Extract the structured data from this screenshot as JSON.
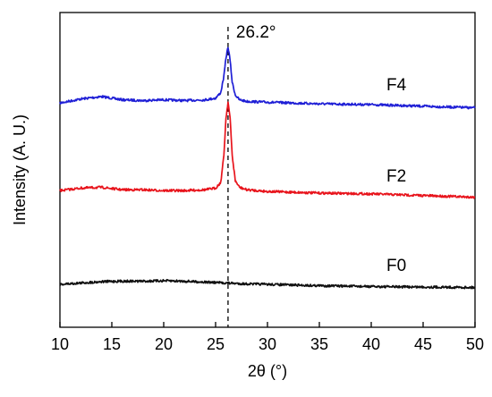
{
  "chart_data": {
    "type": "line",
    "xlabel": "2θ (°)",
    "ylabel": "Intensity (A. U.)",
    "xlim": [
      10,
      50
    ],
    "x_ticks": [
      10,
      15,
      20,
      25,
      30,
      35,
      40,
      45,
      50
    ],
    "y_ticks_shown": false,
    "grid": false,
    "legend": "none",
    "annotation": {
      "text": "26.2°",
      "x": 26.2,
      "style": "dashed vertical line"
    },
    "series": [
      {
        "name": "F4",
        "color": "#1f1fd6",
        "points": [
          [
            10,
            0.02
          ],
          [
            12,
            0.07
          ],
          [
            14,
            0.1
          ],
          [
            16,
            0.06
          ],
          [
            18,
            0.05
          ],
          [
            20,
            0.06
          ],
          [
            22,
            0.05
          ],
          [
            24,
            0.06
          ],
          [
            25,
            0.08
          ],
          [
            25.5,
            0.15
          ],
          [
            25.8,
            0.35
          ],
          [
            26,
            0.58
          ],
          [
            26.2,
            0.72
          ],
          [
            26.4,
            0.55
          ],
          [
            26.6,
            0.28
          ],
          [
            26.9,
            0.12
          ],
          [
            27.3,
            0.06
          ],
          [
            28,
            0.04
          ],
          [
            30,
            0.03
          ],
          [
            35,
            0.01
          ],
          [
            40,
            0.0
          ],
          [
            45,
            -0.02
          ],
          [
            50,
            -0.04
          ]
        ]
      },
      {
        "name": "F2",
        "color": "#e8141c",
        "points": [
          [
            10,
            0.02
          ],
          [
            12,
            0.05
          ],
          [
            14,
            0.06
          ],
          [
            16,
            0.03
          ],
          [
            18,
            0.03
          ],
          [
            20,
            0.02
          ],
          [
            22,
            0.02
          ],
          [
            24,
            0.03
          ],
          [
            25,
            0.05
          ],
          [
            25.5,
            0.12
          ],
          [
            25.8,
            0.45
          ],
          [
            26,
            0.9
          ],
          [
            26.2,
            1.1
          ],
          [
            26.4,
            0.9
          ],
          [
            26.6,
            0.45
          ],
          [
            26.9,
            0.14
          ],
          [
            27.3,
            0.06
          ],
          [
            28,
            0.03
          ],
          [
            30,
            0.01
          ],
          [
            35,
            -0.01
          ],
          [
            40,
            -0.02
          ],
          [
            45,
            -0.04
          ],
          [
            50,
            -0.06
          ]
        ]
      },
      {
        "name": "F0",
        "color": "#111111",
        "points": [
          [
            10,
            0.0
          ],
          [
            12,
            0.03
          ],
          [
            14,
            0.06
          ],
          [
            16,
            0.07
          ],
          [
            18,
            0.07
          ],
          [
            20,
            0.08
          ],
          [
            22,
            0.07
          ],
          [
            24,
            0.05
          ],
          [
            26,
            0.03
          ],
          [
            28,
            0.01
          ],
          [
            30,
            0.0
          ],
          [
            35,
            -0.03
          ],
          [
            40,
            -0.05
          ],
          [
            45,
            -0.06
          ],
          [
            50,
            -0.07
          ]
        ]
      }
    ],
    "series_labels": [
      {
        "text": "F4"
      },
      {
        "text": "F2"
      },
      {
        "text": "F0"
      }
    ]
  }
}
